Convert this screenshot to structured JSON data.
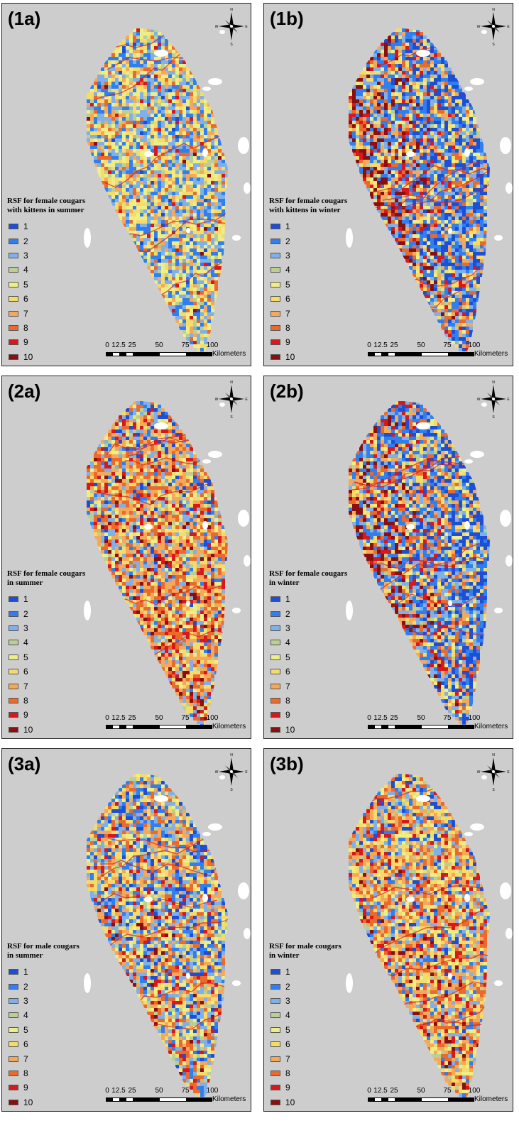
{
  "panels": [
    {
      "label": "(1a)",
      "title_lines": [
        "RSF for female cougars",
        "with kittens in summer"
      ],
      "mix": [
        0.02,
        0.16,
        0.18,
        0.07,
        0.2,
        0.18,
        0.1,
        0.06,
        0.02,
        0.01
      ],
      "bias": 0.0
    },
    {
      "label": "(1b)",
      "title_lines": [
        "RSF for female cougars",
        "with kittens in winter"
      ],
      "mix": [
        0.12,
        0.2,
        0.12,
        0.04,
        0.06,
        0.1,
        0.1,
        0.1,
        0.08,
        0.08
      ],
      "bias": 0.6
    },
    {
      "label": "(2a)",
      "title_lines": [
        "RSF for female cougars",
        "in summer"
      ],
      "mix": [
        0.02,
        0.06,
        0.12,
        0.05,
        0.08,
        0.14,
        0.2,
        0.18,
        0.1,
        0.05
      ],
      "bias": 0.3
    },
    {
      "label": "(2b)",
      "title_lines": [
        "RSF for female cougars",
        "in winter"
      ],
      "mix": [
        0.12,
        0.2,
        0.12,
        0.04,
        0.06,
        0.1,
        0.12,
        0.1,
        0.08,
        0.06
      ],
      "bias": 0.6
    },
    {
      "label": "(3a)",
      "title_lines": [
        "RSF for male cougars",
        "in summer"
      ],
      "mix": [
        0.08,
        0.12,
        0.16,
        0.06,
        0.1,
        0.14,
        0.14,
        0.12,
        0.06,
        0.02
      ],
      "bias": 0.4
    },
    {
      "label": "(3b)",
      "title_lines": [
        "RSF for male cougars",
        "in winter"
      ],
      "mix": [
        0.04,
        0.08,
        0.1,
        0.05,
        0.1,
        0.16,
        0.2,
        0.16,
        0.08,
        0.03
      ],
      "bias": 0.3
    }
  ],
  "legend": {
    "classes": [
      "1",
      "2",
      "3",
      "4",
      "5",
      "6",
      "7",
      "8",
      "9",
      "10"
    ],
    "colors": [
      "#1c4fd6",
      "#2f7ff0",
      "#7fb0ea",
      "#b9cf94",
      "#eeee88",
      "#f5dc6a",
      "#f5a85a",
      "#ea6a2c",
      "#d8181c",
      "#8a1010"
    ]
  },
  "scale": {
    "ticks": [
      "0",
      "12.5",
      "25",
      "50",
      "75",
      "100"
    ],
    "unit": "Kilometers"
  },
  "colors": {
    "background": "#cdcdcd",
    "water": "#ffffff",
    "border": "#222222"
  },
  "compass_letters": [
    "N",
    "E",
    "S",
    "W"
  ]
}
